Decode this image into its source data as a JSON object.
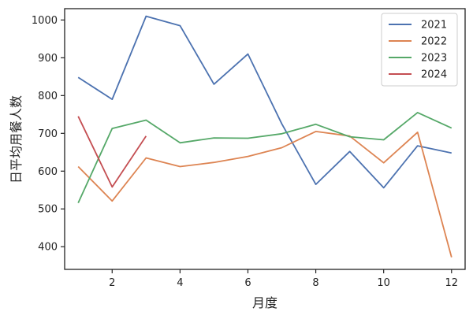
{
  "chart_data": {
    "type": "line",
    "title": "",
    "xlabel": "月度",
    "ylabel": "日平均用餐人数",
    "xlim": [
      0.6,
      12.4
    ],
    "ylim": [
      340,
      1030
    ],
    "xticks": [
      2,
      4,
      6,
      8,
      10,
      12
    ],
    "yticks": [
      400,
      500,
      600,
      700,
      800,
      900,
      1000
    ],
    "grid": false,
    "legend_position": "top-right",
    "series": [
      {
        "name": "2021",
        "color": "#4c72b0",
        "x": [
          1,
          2,
          3,
          4,
          5,
          6,
          7,
          8,
          9,
          10,
          11,
          12
        ],
        "values": [
          848,
          790,
          1010,
          985,
          830,
          910,
          725,
          565,
          652,
          556,
          667,
          648
        ]
      },
      {
        "name": "2022",
        "color": "#dd8452",
        "x": [
          1,
          2,
          3,
          4,
          5,
          6,
          7,
          8,
          9,
          10,
          11,
          12
        ],
        "values": [
          612,
          521,
          635,
          612,
          623,
          639,
          662,
          705,
          693,
          622,
          703,
          372
        ]
      },
      {
        "name": "2023",
        "color": "#55a868",
        "x": [
          1,
          2,
          3,
          4,
          5,
          6,
          7,
          8,
          9,
          10,
          11,
          12
        ],
        "values": [
          516,
          713,
          735,
          675,
          688,
          687,
          699,
          724,
          691,
          683,
          755,
          714
        ]
      },
      {
        "name": "2024",
        "color": "#c44e52",
        "x": [
          1,
          2,
          3
        ],
        "values": [
          745,
          558,
          693
        ]
      }
    ]
  }
}
